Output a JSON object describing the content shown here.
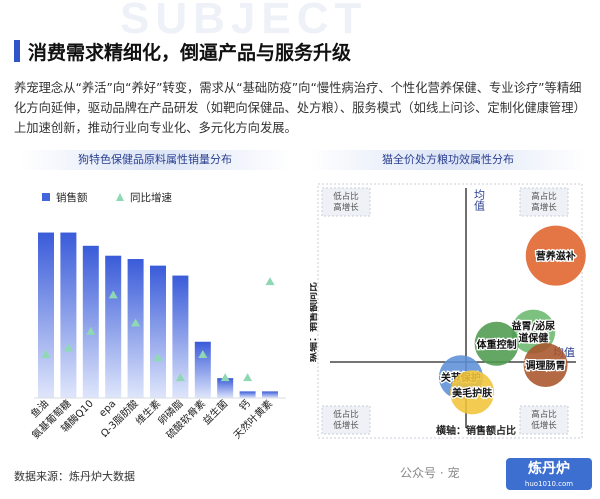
{
  "page": {
    "watermark": "SUBJECT",
    "title": "消费需求精细化，倒逼产品与服务升级",
    "description": "养宠理念从“养活”向“养好”转变，需求从“基础防疫”向“慢性病治疗、个性化营养保健、专业诊疗”等精细化方向延伸，驱动品牌在产品研发（如靶向保健品、处方粮）、服务模式（如线上问诊、定制化健康管理）上加速创新，推动行业向专业化、多元化方向发展。",
    "source": "数据来源：炼丹炉大数据",
    "brand_text": "公众号 · 宠",
    "brand_logo": "炼丹炉",
    "brand_logo_sub": "huo1010.com"
  },
  "chart_data": [
    {
      "type": "bar",
      "title": "狗特色保健品原料属性销量分布",
      "categories": [
        "鱼油",
        "氨基葡萄糖",
        "辅酶Q10",
        "epa",
        "Ω-3脂肪酸",
        "维生素",
        "卵磷脂",
        "硫酸软骨素",
        "益生菌",
        "钙",
        "天然叶黄素"
      ],
      "series": [
        {
          "name": "销售额",
          "kind": "bar",
          "color": "#4466dd",
          "values": [
            100,
            100,
            92,
            86,
            84,
            80,
            74,
            34,
            12,
            4,
            4
          ]
        },
        {
          "name": "同比增速",
          "kind": "marker",
          "color": "#8fd8b4",
          "values": [
            26,
            30,
            40,
            62,
            45,
            24,
            12,
            26,
            12,
            12,
            70
          ]
        }
      ],
      "ylim": [
        0,
        110
      ],
      "legend": "top-left",
      "grid": false
    },
    {
      "type": "scatter",
      "title": "猫全价处方粮功效属性分布",
      "xlabel": "横轴：销售额占比",
      "ylabel": "纵轴：销售额同比",
      "avg_x_label": "均值",
      "avg_y_label": "均值",
      "quadrants": {
        "top_left": [
          "低占比",
          "高增长"
        ],
        "top_right": [
          "高占比",
          "高增长"
        ],
        "bottom_left": [
          "低占比",
          "低增长"
        ],
        "bottom_right": [
          "高占比",
          "低增长"
        ]
      },
      "points": [
        {
          "label": "营养滋补",
          "x": 0.88,
          "y": 0.7,
          "size": 3,
          "color": "#e0622a"
        },
        {
          "label": "益胃/泌尿道保健",
          "x": 0.66,
          "y": 0.2,
          "size": 2,
          "color": "#6bb86f"
        },
        {
          "label": "体重控制",
          "x": 0.3,
          "y": 0.12,
          "size": 2,
          "color": "#4f9a4f"
        },
        {
          "label": "调理肠胃",
          "x": 0.78,
          "y": -0.02,
          "size": 2,
          "color": "#a8542a"
        },
        {
          "label": "关节保护",
          "x": -0.05,
          "y": -0.1,
          "size": 2,
          "color": "#5d8fd8"
        },
        {
          "label": "美毛护肤",
          "x": 0.06,
          "y": -0.2,
          "size": 2,
          "color": "#f0c438"
        }
      ],
      "xlim": [
        -0.5,
        1.0
      ],
      "ylim": [
        -0.6,
        1.0
      ],
      "grid": false
    }
  ]
}
